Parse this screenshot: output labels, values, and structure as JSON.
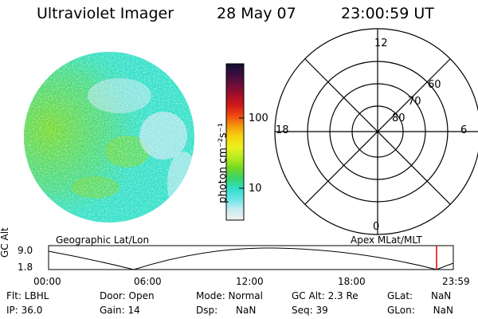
{
  "header": {
    "title": "Ultraviolet Imager",
    "date": "28 May 07",
    "time": "23:00:59 UT"
  },
  "colorbar": {
    "label": "photon cm⁻²s⁻¹",
    "ticks": [
      "100",
      "10"
    ],
    "stops": [
      "#101030",
      "#3a0d40",
      "#6a0e3a",
      "#a30e28",
      "#cf1a1a",
      "#ee4a10",
      "#f59a0c",
      "#f7d410",
      "#ecf020",
      "#b8ec20",
      "#74d824",
      "#38d46a",
      "#30e0c8",
      "#6ae4e8",
      "#c8ecf0",
      "#f2f2f2"
    ]
  },
  "image": {
    "colors": {
      "background": "#bde8f0",
      "cyan": "#30e0c8",
      "green": "#7ad822",
      "yellow": "#d8ec24"
    }
  },
  "polar": {
    "mlt_labels": {
      "top": "12",
      "left": "18",
      "right": "6",
      "bottom": "0"
    },
    "lat_labels": [
      "60",
      "70",
      "80"
    ]
  },
  "orbit": {
    "left_label": "Geographic Lat/Lon",
    "right_label": "Apex MLat/MLT",
    "axis_label": "GC Alt",
    "y_ticks": [
      "9.0",
      "1.8"
    ],
    "x_ticks": [
      "00:00",
      "06:00",
      "12:00",
      "18:00",
      "23:59"
    ],
    "marker_color": "#e00000"
  },
  "footer": {
    "flt": "Flt: LBHL",
    "ip": "IP: 36.0",
    "door": "Door: Open",
    "gain": "Gain: 14",
    "mode": "Mode: Normal",
    "dsp": "Dsp:      NaN",
    "gcalt": "GC Alt: 2.3 Re",
    "seq": "Seq: 39",
    "glat": "GLat:      NaN",
    "glon": "GLon:      NaN"
  }
}
